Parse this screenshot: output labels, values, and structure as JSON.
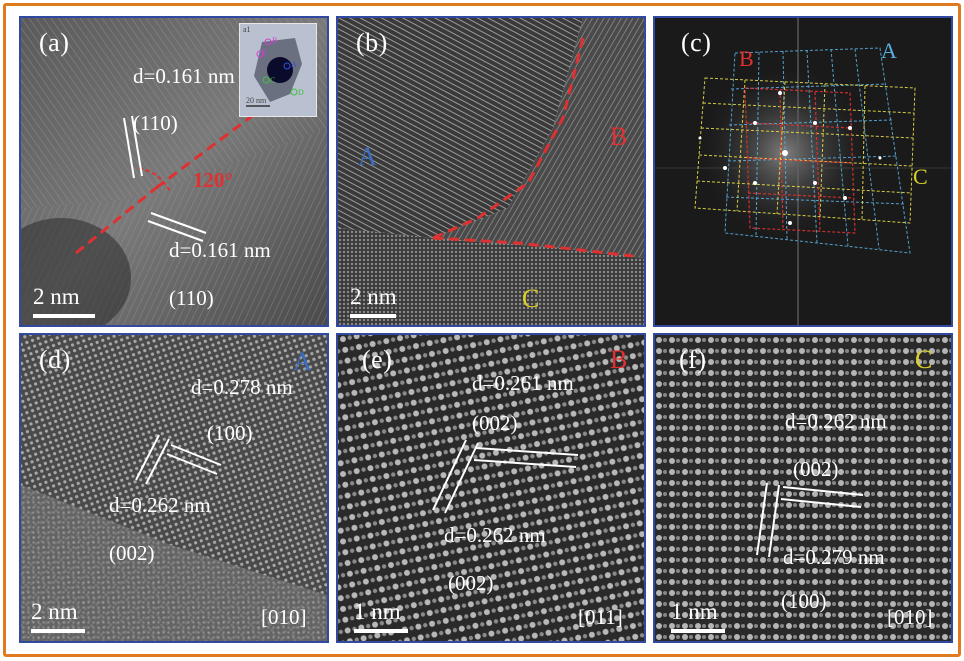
{
  "colors": {
    "frame": "#e07a1f",
    "panel_border": "#2f4aa0",
    "dash_red": "#e03030",
    "grain_a": "#3a6fc4",
    "grain_b": "#e03030",
    "grain_c": "#d9d02a",
    "fft_blue": "#5aaede",
    "fft_yellow": "#e8e04a"
  },
  "panels": {
    "a": {
      "label": "(a)",
      "d1": "d=0.161 nm",
      "plane1": "(110)",
      "angle": "120°",
      "d2": "d=0.161 nm",
      "plane2": "(110)",
      "scale": "2 nm",
      "inset": {
        "label": "a1",
        "markers": [
          "B",
          "E",
          "A",
          "C",
          "D"
        ],
        "scale": "20 nm"
      }
    },
    "b": {
      "label": "(b)",
      "grain_a": "A",
      "grain_b": "B",
      "grain_c": "C",
      "scale": "2 nm"
    },
    "c": {
      "label": "(c)",
      "grain_a": "A",
      "grain_b": "B",
      "grain_c": "C"
    },
    "d": {
      "label": "(d)",
      "grain": "A",
      "d1": "d=0.278 nm",
      "plane1": "(100)",
      "d2": "d=0.262 nm",
      "plane2": "(002)",
      "scale": "2 nm",
      "zone": "[010]"
    },
    "e": {
      "label": "(e)",
      "grain": "B",
      "d1": "d=0.261 nm",
      "plane1": "(002)",
      "d2": "d=0.262 nm",
      "plane2": "(002)",
      "scale": "1 nm",
      "zone": "[011]"
    },
    "f": {
      "label": "(f)",
      "grain": "C",
      "d1": "d=0.262 nm",
      "plane1": "(002)",
      "d2": "d=0.279 nm",
      "plane2": "(100)",
      "scale": "1 nm",
      "zone": "[010]"
    }
  }
}
